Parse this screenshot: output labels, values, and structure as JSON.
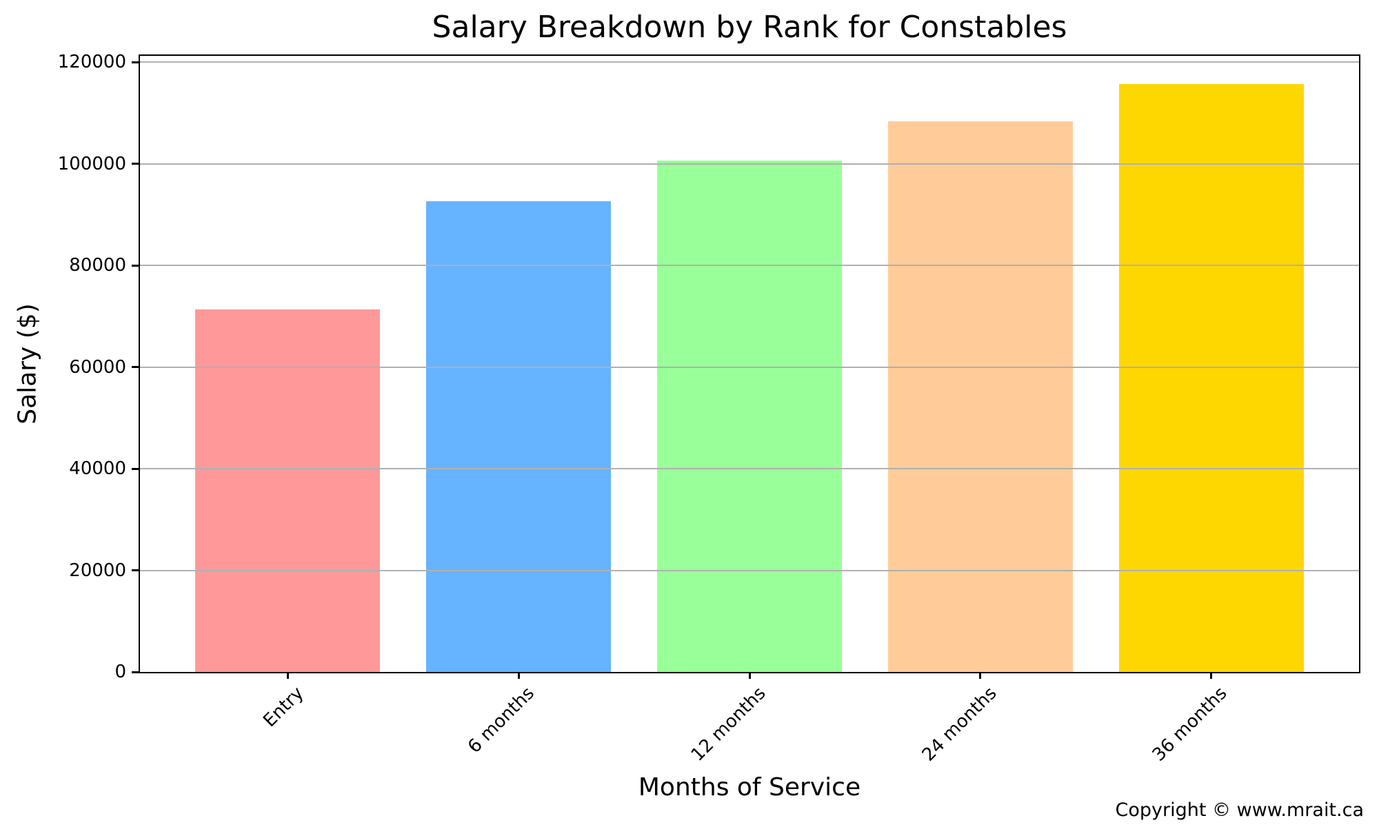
{
  "title": "Salary Breakdown by Rank for Constables",
  "x_axis_label": "Months of Service",
  "y_axis_label": "Salary ($)",
  "copyright": "Copyright © www.mrait.ca",
  "chart_data": {
    "type": "bar",
    "title": "Salary Breakdown by Rank for Constables",
    "xlabel": "Months of Service",
    "ylabel": "Salary ($)",
    "categories": [
      "Entry",
      "6 months",
      "12 months",
      "24 months",
      "36 months"
    ],
    "values": [
      71300,
      92700,
      100700,
      108400,
      115700
    ],
    "bar_colors": [
      "#ff9999",
      "#66b3ff",
      "#99ff99",
      "#ffcc99",
      "#ffd700"
    ],
    "yticks": [
      0,
      20000,
      40000,
      60000,
      80000,
      100000,
      120000
    ],
    "ytick_labels": [
      "0",
      "20000",
      "40000",
      "60000",
      "80000",
      "100000",
      "120000"
    ],
    "ylim": [
      0,
      121250
    ],
    "xlim_units": [
      -0.64,
      4.64
    ],
    "bar_width_units": 0.8,
    "grid": "horizontal",
    "grid_on_top_of_bars": true,
    "grid_color": "#b0b0b0",
    "background_color": "#ffffff",
    "spine_color": "#000000",
    "legend": "none",
    "x_tick_label_rotation_deg": 45,
    "annotations": [
      "Copyright © www.mrait.ca"
    ]
  }
}
